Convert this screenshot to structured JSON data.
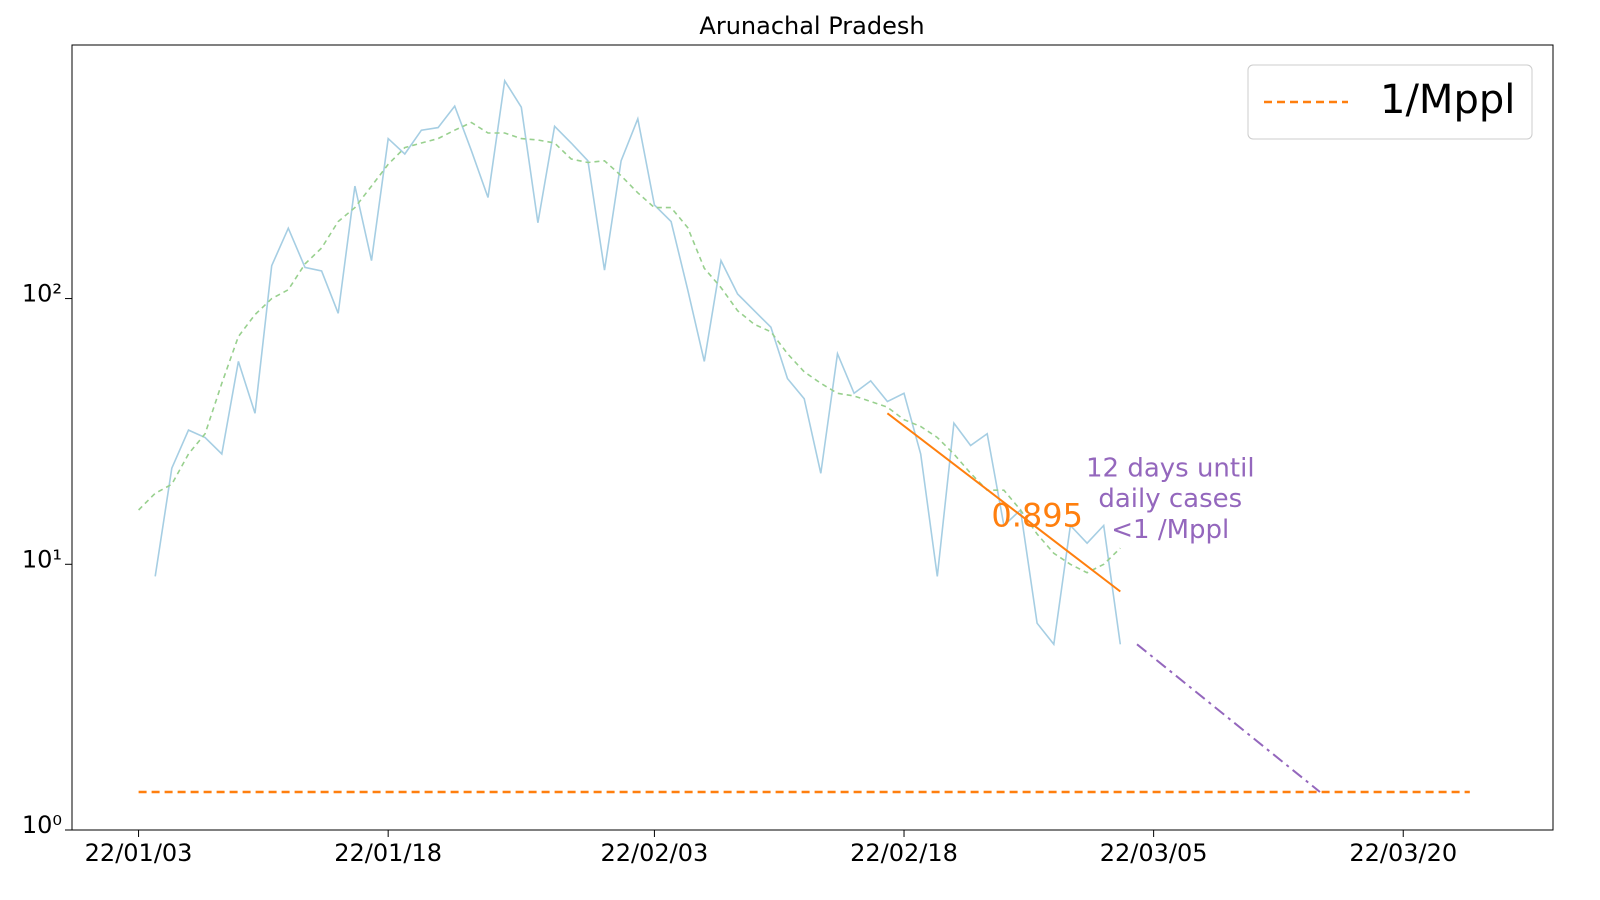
{
  "chart_data": {
    "type": "line",
    "title": "Arunachal Pradesh",
    "log_y": true,
    "x": [
      "2022-01-03",
      "2022-01-04",
      "2022-01-05",
      "2022-01-06",
      "2022-01-07",
      "2022-01-08",
      "2022-01-09",
      "2022-01-10",
      "2022-01-11",
      "2022-01-12",
      "2022-01-13",
      "2022-01-14",
      "2022-01-15",
      "2022-01-16",
      "2022-01-17",
      "2022-01-18",
      "2022-01-19",
      "2022-01-20",
      "2022-01-21",
      "2022-01-22",
      "2022-01-23",
      "2022-01-24",
      "2022-01-25",
      "2022-01-26",
      "2022-01-27",
      "2022-01-28",
      "2022-01-29",
      "2022-01-30",
      "2022-01-31",
      "2022-02-01",
      "2022-02-02",
      "2022-02-03",
      "2022-02-04",
      "2022-02-05",
      "2022-02-06",
      "2022-02-07",
      "2022-02-08",
      "2022-02-09",
      "2022-02-10",
      "2022-02-11",
      "2022-02-12",
      "2022-02-13",
      "2022-02-14",
      "2022-02-15",
      "2022-02-16",
      "2022-02-17",
      "2022-02-18",
      "2022-02-19",
      "2022-02-20",
      "2022-02-21",
      "2022-02-22",
      "2022-02-23",
      "2022-02-24",
      "2022-02-25",
      "2022-02-26",
      "2022-02-27",
      "2022-02-28",
      "2022-03-01",
      "2022-03-02",
      "2022-03-03"
    ],
    "series": [
      {
        "color": "#a6cee3",
        "dash": "none",
        "values": [
          null,
          9,
          23,
          32,
          30,
          26,
          58,
          37,
          133,
          184,
          131,
          127,
          88,
          265,
          139,
          400,
          350,
          430,
          440,
          530,
          360,
          240,
          660,
          525,
          193,
          445,
          385,
          330,
          128,
          330,
          475,
          225,
          195,
          108,
          58,
          139,
          104,
          90,
          78,
          50,
          42,
          22,
          62,
          44,
          49,
          41,
          44,
          26,
          9,
          34,
          28,
          31,
          14,
          16,
          6,
          5,
          14,
          12,
          14,
          5
        ]
      },
      {
        "color": "#98d08e",
        "dash": "5 4",
        "values": [
          16,
          18.5,
          20,
          26,
          31,
          48,
          72,
          87,
          100,
          108,
          135,
          155,
          195,
          220,
          265,
          320,
          370,
          385,
          400,
          430,
          460,
          420,
          420,
          400,
          395,
          385,
          335,
          325,
          330,
          290,
          250,
          220,
          220,
          185,
          130,
          110,
          90,
          80,
          75,
          62,
          53,
          48,
          44,
          43,
          41,
          39,
          35,
          33,
          30,
          26,
          22,
          19,
          19,
          16,
          13,
          11,
          10,
          9.3,
          10,
          11.5
        ]
      },
      {
        "color": "#ff7f0e",
        "dash": "none",
        "width": 2,
        "x": [
          "2022-02-17",
          "2022-03-03"
        ],
        "values": [
          37,
          7.9
        ]
      },
      {
        "color": "#9467bd",
        "dash": "12 5 3 5",
        "width": 2,
        "x": [
          "2022-03-04",
          "2022-03-15"
        ],
        "values": [
          5,
          1.39
        ]
      },
      {
        "name": "1/Mppl",
        "color": "#ff7f0e",
        "dash": "8 5",
        "width": 2.5,
        "x": [
          "2022-01-03",
          "2022-03-24"
        ],
        "values": [
          1.39,
          1.39
        ]
      }
    ],
    "annotations": [
      {
        "text": [
          "0.895"
        ],
        "color": "#ff7f0e",
        "x": "2022-02-26",
        "y": 15,
        "size": 32
      },
      {
        "text": [
          "12 days until",
          "daily cases",
          "<1 /Mppl"
        ],
        "color": "#9467bd",
        "x": "2022-03-06",
        "y": 17.5,
        "size": 26
      }
    ],
    "xlim": [
      "2021-12-30",
      "2022-03-29"
    ],
    "xticks": [
      {
        "value": "2022-01-03",
        "label": "22/01/03"
      },
      {
        "value": "2022-01-18",
        "label": "22/01/18"
      },
      {
        "value": "2022-02-03",
        "label": "22/02/03"
      },
      {
        "value": "2022-02-18",
        "label": "22/02/18"
      },
      {
        "value": "2022-03-05",
        "label": "22/03/05"
      },
      {
        "value": "2022-03-20",
        "label": "22/03/20"
      }
    ],
    "ylim": [
      1,
      900
    ],
    "yticks": [
      {
        "value": 1,
        "label": "10⁰"
      },
      {
        "value": 10,
        "label": "10¹"
      },
      {
        "value": 100,
        "label": "10²"
      }
    ],
    "legend": "upper right"
  }
}
